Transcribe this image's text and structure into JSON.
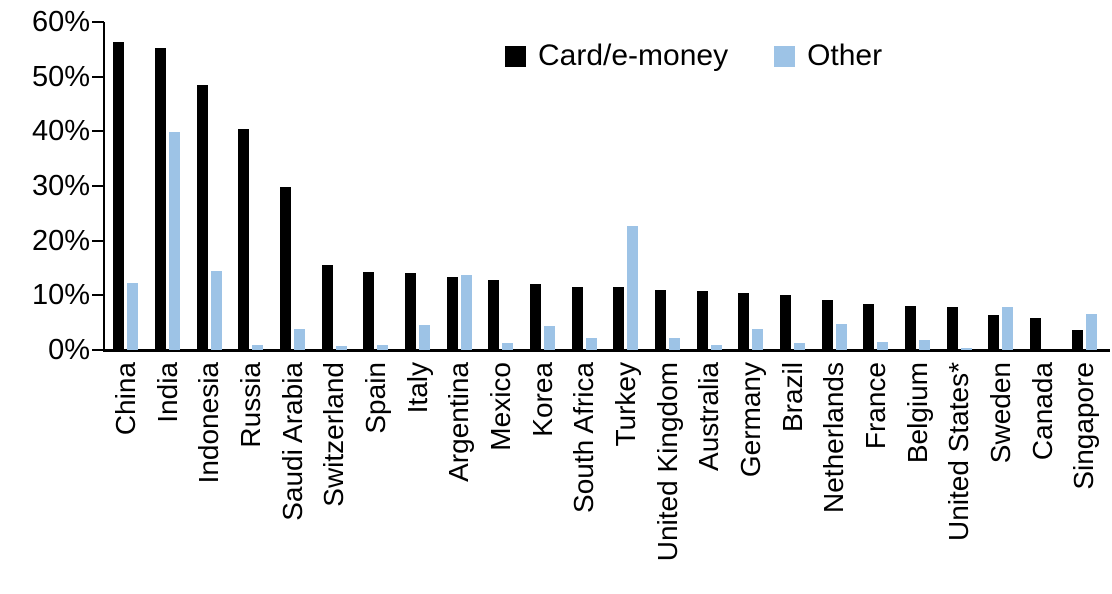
{
  "chart_data": {
    "type": "bar",
    "title": "",
    "xlabel": "",
    "ylabel": "",
    "categories": [
      "China",
      "India",
      "Indonesia",
      "Russia",
      "Saudi Arabia",
      "Switzerland",
      "Spain",
      "Italy",
      "Argentina",
      "Mexico",
      "Korea",
      "South Africa",
      "Turkey",
      "United Kingdom",
      "Australia",
      "Germany",
      "Brazil",
      "Netherlands",
      "France",
      "Belgium",
      "United States*",
      "Sweden",
      "Canada",
      "Singapore"
    ],
    "series": [
      {
        "name": "Card/e-money",
        "color": "#000000",
        "values": [
          56.3,
          55.2,
          48.4,
          40.5,
          29.9,
          15.6,
          14.2,
          14.0,
          13.3,
          12.8,
          12.1,
          11.6,
          11.5,
          11.0,
          10.8,
          10.4,
          10.0,
          9.1,
          8.5,
          8.0,
          7.8,
          6.4,
          5.8,
          3.7
        ]
      },
      {
        "name": "Other",
        "color": "#9DC3E6",
        "values": [
          12.3,
          39.8,
          14.5,
          0.9,
          3.8,
          0.7,
          0.9,
          4.5,
          13.7,
          1.3,
          4.4,
          2.2,
          22.6,
          2.2,
          1.0,
          3.9,
          1.2,
          4.8,
          1.5,
          1.9,
          0.3,
          7.9,
          0,
          6.5
        ]
      }
    ],
    "ylim": [
      0,
      60
    ],
    "ytick_values": [
      0,
      10,
      20,
      30,
      40,
      50,
      60
    ],
    "ytick_labels": [
      "0%",
      "10%",
      "20%",
      "30%",
      "40%",
      "50%",
      "60%"
    ],
    "grid": false,
    "legend_position": "top-center"
  }
}
